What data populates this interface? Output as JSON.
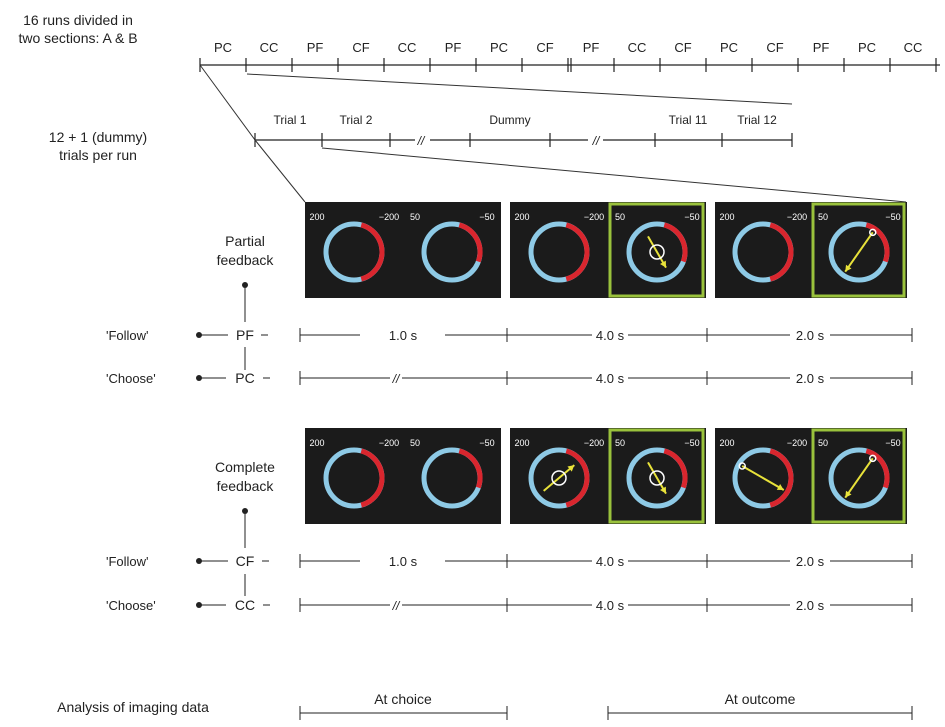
{
  "header": {
    "runs_label": [
      "16 runs divided in",
      "two sections: A & B"
    ],
    "trials_label": [
      "12 + 1 (dummy)",
      "trials per run"
    ]
  },
  "runs": [
    "PC",
    "CC",
    "PF",
    "CF",
    "CC",
    "PF",
    "PC",
    "CF",
    "PF",
    "CC",
    "CF",
    "PC",
    "CF",
    "PF",
    "PC",
    "CC"
  ],
  "trials": {
    "t1": "Trial 1",
    "t2": "Trial 2",
    "dummy": "Dummy",
    "t11": "Trial 11",
    "t12": "Trial 12",
    "break_mark": "//"
  },
  "panel_labels": {
    "left_value": "200",
    "left_value_neg": "−200",
    "right_value": "50",
    "right_value_neg": "−50"
  },
  "partial": {
    "title": [
      "Partial",
      "feedback"
    ],
    "follow_quote": "'Follow'",
    "follow_code": "PF",
    "choose_quote": "'Choose'",
    "choose_code": "PC",
    "durations": [
      "1.0 s",
      "4.0 s",
      "2.0 s"
    ]
  },
  "complete": {
    "title": [
      "Complete",
      "feedback"
    ],
    "follow_quote": "'Follow'",
    "follow_code": "CF",
    "choose_quote": "'Choose'",
    "choose_code": "CC",
    "durations": [
      "1.0 s",
      "4.0 s",
      "2.0 s"
    ]
  },
  "analysis": {
    "label": "Analysis of imaging data",
    "at_choice": "At choice",
    "at_outcome": "At outcome"
  },
  "colors": {
    "panel_bg": "#1b1b1b",
    "blue_ring": "#8ecae6",
    "red_ring": "#d9262e",
    "highlight": "#9ac23c",
    "arrow": "#e8e23a"
  }
}
